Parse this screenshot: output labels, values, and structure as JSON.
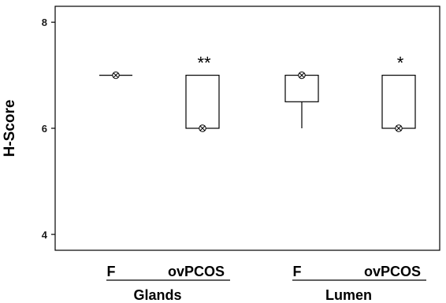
{
  "chart_data": {
    "type": "box",
    "ylabel": "H-Score",
    "ylim": [
      3.7,
      8.3
    ],
    "yticks": [
      "4",
      "6",
      "8"
    ],
    "groups": [
      {
        "label": "Glands",
        "categories": [
          "F",
          "ovPCOS"
        ]
      },
      {
        "label": "Lumen",
        "categories": [
          "F",
          "ovPCOS"
        ]
      }
    ],
    "boxes": [
      {
        "category": "F",
        "group": "Glands",
        "min": 7,
        "q1": 7,
        "median": 7,
        "q3": 7,
        "max": 7,
        "point": 7,
        "significance": ""
      },
      {
        "category": "ovPCOS",
        "group": "Glands",
        "min": 6,
        "q1": 6,
        "median": 6,
        "q3": 7,
        "max": 7,
        "point": 6,
        "significance": "**"
      },
      {
        "category": "F",
        "group": "Lumen",
        "min": 6,
        "q1": 6.5,
        "median": 7,
        "q3": 7,
        "max": 7,
        "point": 7,
        "significance": ""
      },
      {
        "category": "ovPCOS",
        "group": "Lumen",
        "min": 6,
        "q1": 6,
        "median": 6,
        "q3": 7,
        "max": 7,
        "point": 6,
        "significance": "*"
      }
    ],
    "colors": {
      "box_stroke": "#000000",
      "box_fill": "#ffffff",
      "frame": "#000000"
    }
  }
}
